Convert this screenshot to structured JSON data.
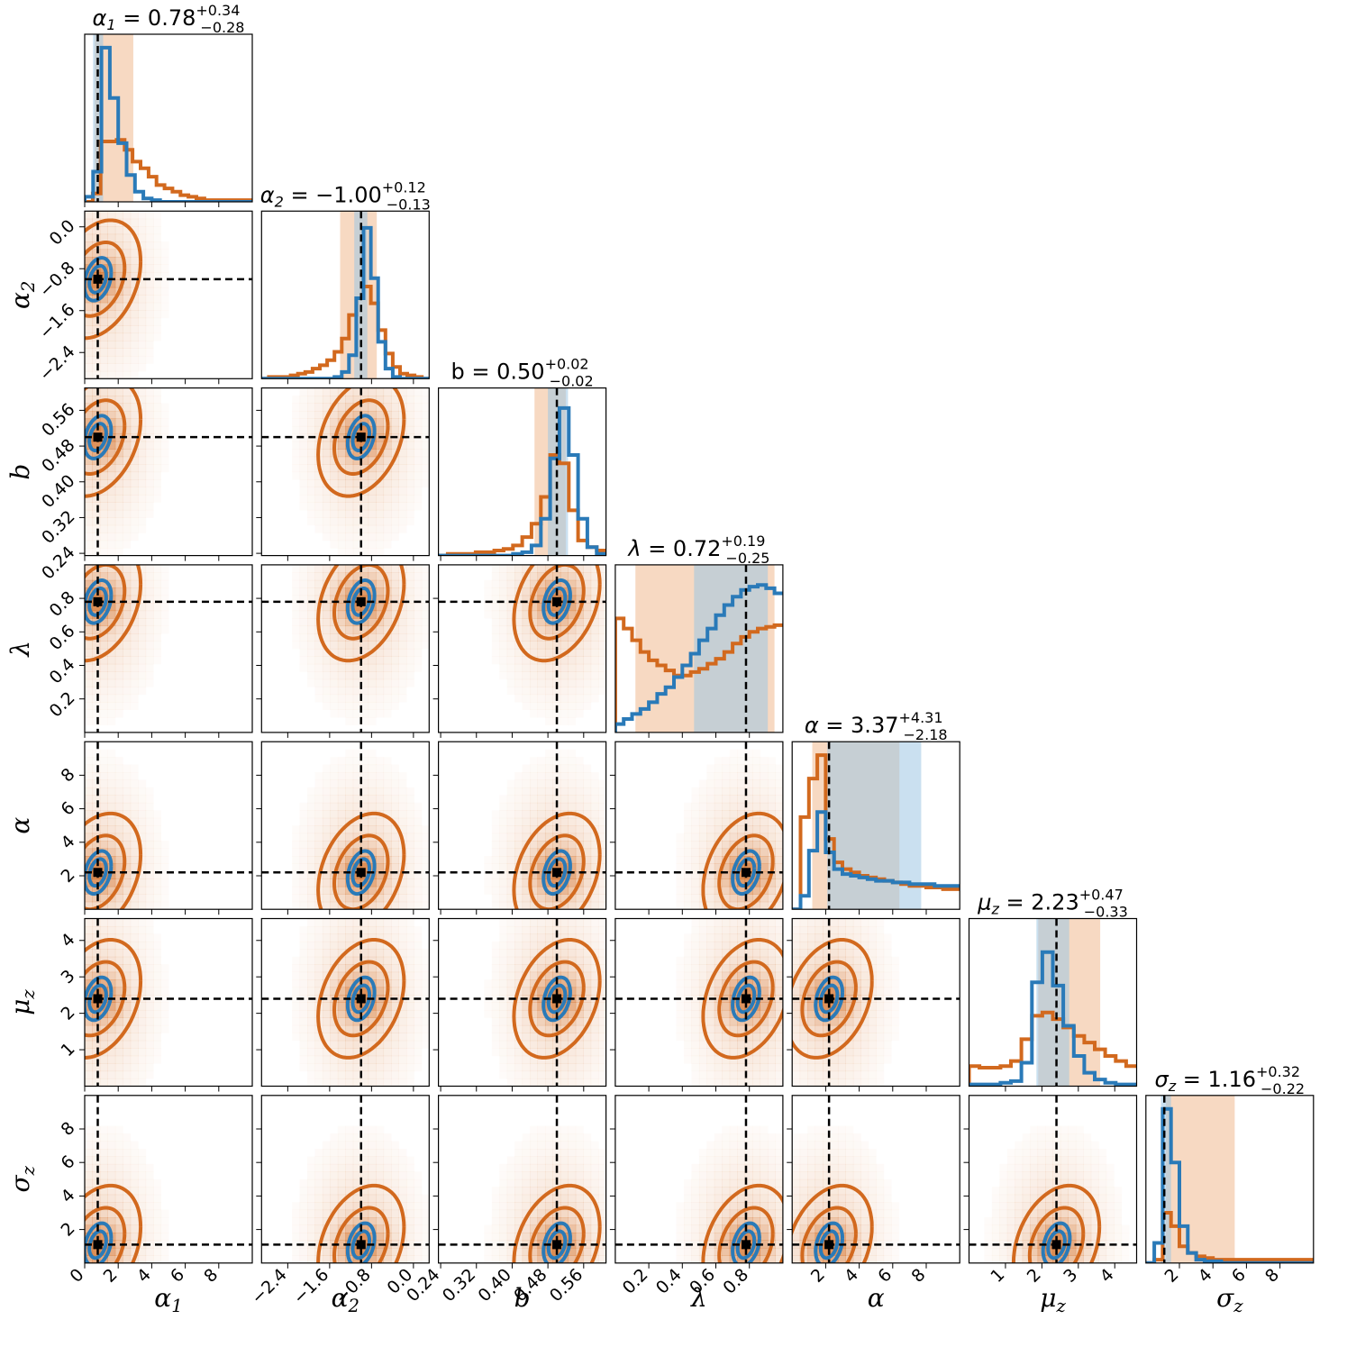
{
  "chart_data": {
    "type": "corner",
    "parameters": [
      {
        "key": "a1",
        "label": "α",
        "label_sub": "1",
        "range": [
          0,
          10
        ],
        "ticks": [
          0,
          2,
          4,
          6,
          8
        ],
        "tick_labels": [
          "0",
          "2",
          "4",
          "6",
          "8"
        ],
        "truth": 0.78,
        "title_prefix": "α",
        "title_sub": "1",
        "title_value": " = 0.78",
        "title_plus": "+0.34",
        "title_minus": "−0.28",
        "ci_orange": [
          0.6,
          2.9
        ],
        "ci_blue": [
          0.5,
          1.1
        ]
      },
      {
        "key": "a2",
        "label": "α",
        "label_sub": "2",
        "range": [
          -2.9,
          0.3
        ],
        "ticks": [
          -2.4,
          -1.6,
          -0.8,
          0.0
        ],
        "tick_labels": [
          "−2.4",
          "−1.6",
          "−0.8",
          "0.0"
        ],
        "truth": -1.0,
        "title_prefix": "α",
        "title_sub": "2",
        "title_value": " = −1.00",
        "title_plus": "+0.12",
        "title_minus": "−0.13",
        "ci_orange": [
          -1.4,
          -0.7
        ],
        "ci_blue": [
          -1.13,
          -0.88
        ]
      },
      {
        "key": "b",
        "label": "b",
        "label_sub": "",
        "range": [
          0.235,
          0.61
        ],
        "ticks": [
          0.24,
          0.32,
          0.4,
          0.48,
          0.56
        ],
        "tick_labels": [
          "0.24",
          "0.32",
          "0.40",
          "0.48",
          "0.56"
        ],
        "truth": 0.5,
        "title_prefix": "b",
        "title_sub": "",
        "title_value": " = 0.50",
        "title_plus": "+0.02",
        "title_minus": "−0.02",
        "ci_orange": [
          0.45,
          0.52
        ],
        "ci_blue": [
          0.48,
          0.525
        ]
      },
      {
        "key": "lam",
        "label": "λ",
        "label_sub": "",
        "range": [
          0,
          1
        ],
        "ticks": [
          0.2,
          0.4,
          0.6,
          0.8
        ],
        "tick_labels": [
          "0.2",
          "0.4",
          "0.6",
          "0.8"
        ],
        "truth": 0.78,
        "title_prefix": "λ",
        "title_sub": "",
        "title_value": " = 0.72",
        "title_plus": "+0.19",
        "title_minus": "−0.25",
        "ci_orange": [
          0.12,
          0.95
        ],
        "ci_blue": [
          0.47,
          0.91
        ]
      },
      {
        "key": "alpha",
        "label": "α",
        "label_sub": "",
        "range": [
          0,
          10
        ],
        "ticks": [
          2,
          4,
          6,
          8
        ],
        "tick_labels": [
          "2",
          "4",
          "6",
          "8"
        ],
        "truth": 2.2,
        "title_prefix": "α",
        "title_sub": "",
        "title_value": " = 3.37",
        "title_plus": "+4.31",
        "title_minus": "−2.18",
        "ci_orange": [
          1.2,
          6.4
        ],
        "ci_blue": [
          2.1,
          7.7
        ]
      },
      {
        "key": "muz",
        "label": "μ",
        "label_sub": "z",
        "range": [
          0,
          4.6
        ],
        "ticks": [
          1,
          2,
          3,
          4
        ],
        "tick_labels": [
          "1",
          "2",
          "3",
          "4"
        ],
        "truth": 2.4,
        "title_prefix": "μ",
        "title_sub": "z",
        "title_value": " = 2.23",
        "title_plus": "+0.47",
        "title_minus": "−0.33",
        "ci_orange": [
          1.9,
          3.6
        ],
        "ci_blue": [
          1.85,
          2.75
        ]
      },
      {
        "key": "sigz",
        "label": "σ",
        "label_sub": "z",
        "range": [
          0,
          10
        ],
        "ticks": [
          2,
          4,
          6,
          8
        ],
        "tick_labels": [
          "2",
          "4",
          "6",
          "8"
        ],
        "truth": 1.1,
        "title_prefix": "σ",
        "title_sub": "z",
        "title_value": " = 1.16",
        "title_plus": "+0.32",
        "title_minus": "−0.22",
        "ci_orange": [
          1.2,
          5.3
        ],
        "ci_blue": [
          0.9,
          1.5
        ]
      }
    ],
    "hist_orange": [
      [
        0.0,
        0.05,
        0.36,
        0.36,
        0.37,
        0.31,
        0.24,
        0.2,
        0.15,
        0.1,
        0.08,
        0.06,
        0.04,
        0.03,
        0.02,
        0.01,
        0.01,
        0.01,
        0.01,
        0.01,
        0.01
      ],
      [
        0.0,
        0.01,
        0.01,
        0.01,
        0.02,
        0.03,
        0.04,
        0.06,
        0.08,
        0.11,
        0.16,
        0.24,
        0.38,
        0.48,
        0.55,
        0.45,
        0.29,
        0.15,
        0.07,
        0.03,
        0.02,
        0.01,
        0.0
      ],
      [
        0.0,
        0.01,
        0.01,
        0.01,
        0.02,
        0.02,
        0.03,
        0.04,
        0.06,
        0.11,
        0.19,
        0.35,
        0.6,
        0.55,
        0.27,
        0.09,
        0.05,
        0.03
      ],
      [
        0.68,
        0.62,
        0.55,
        0.48,
        0.43,
        0.4,
        0.37,
        0.34,
        0.34,
        0.36,
        0.38,
        0.41,
        0.44,
        0.48,
        0.53,
        0.57,
        0.6,
        0.62,
        0.63,
        0.64
      ],
      [
        0.0,
        0.55,
        0.78,
        0.92,
        0.42,
        0.28,
        0.24,
        0.22,
        0.2,
        0.19,
        0.18,
        0.17,
        0.16,
        0.15,
        0.14,
        0.14,
        0.13,
        0.13,
        0.12,
        0.12
      ],
      [
        0.12,
        0.11,
        0.11,
        0.12,
        0.15,
        0.28,
        0.42,
        0.44,
        0.4,
        0.35,
        0.3,
        0.26,
        0.22,
        0.18,
        0.15,
        0.12
      ],
      [
        0.0,
        0.02,
        0.3,
        0.22,
        0.1,
        0.06,
        0.04,
        0.03,
        0.02,
        0.02,
        0.02,
        0.02,
        0.02,
        0.02,
        0.02,
        0.02,
        0.02,
        0.02,
        0.02,
        0.02
      ]
    ],
    "hist_blue": [
      [
        0.03,
        0.18,
        0.92,
        0.62,
        0.35,
        0.16,
        0.06,
        0.02,
        0.01,
        0.0,
        0.0,
        0.0,
        0.0,
        0.0,
        0.0,
        0.0,
        0.0,
        0.0,
        0.0,
        0.0
      ],
      [
        0.0,
        0.0,
        0.0,
        0.0,
        0.0,
        0.0,
        0.0,
        0.0,
        0.0,
        0.0,
        0.01,
        0.04,
        0.14,
        0.48,
        0.9,
        0.6,
        0.22,
        0.06,
        0.01,
        0.0,
        0.0,
        0.0,
        0.0
      ],
      [
        0.0,
        0.0,
        0.0,
        0.0,
        0.0,
        0.0,
        0.0,
        0.0,
        0.01,
        0.02,
        0.06,
        0.22,
        0.58,
        0.88,
        0.6,
        0.22,
        0.05,
        0.01
      ],
      [
        0.05,
        0.08,
        0.11,
        0.14,
        0.18,
        0.23,
        0.27,
        0.33,
        0.4,
        0.47,
        0.55,
        0.62,
        0.7,
        0.76,
        0.81,
        0.85,
        0.87,
        0.88,
        0.86,
        0.83
      ],
      [
        0.0,
        0.08,
        0.35,
        0.58,
        0.34,
        0.24,
        0.21,
        0.2,
        0.19,
        0.18,
        0.17,
        0.17,
        0.16,
        0.16,
        0.15,
        0.15,
        0.15,
        0.14,
        0.14,
        0.14
      ],
      [
        0.01,
        0.01,
        0.01,
        0.02,
        0.03,
        0.14,
        0.62,
        0.8,
        0.6,
        0.36,
        0.18,
        0.08,
        0.04,
        0.02,
        0.01,
        0.01
      ],
      [
        0.0,
        0.12,
        0.92,
        0.6,
        0.22,
        0.06,
        0.02,
        0.01,
        0.01,
        0.0,
        0.0,
        0.0,
        0.0,
        0.0,
        0.0,
        0.0,
        0.0,
        0.0,
        0.0,
        0.0
      ]
    ],
    "colors": {
      "orange": "#d2691e",
      "orange_fill": "#f4c9a8",
      "blue": "#2a7ab8",
      "blue_fill": "#9ec6e3",
      "truth": "#000000"
    }
  }
}
